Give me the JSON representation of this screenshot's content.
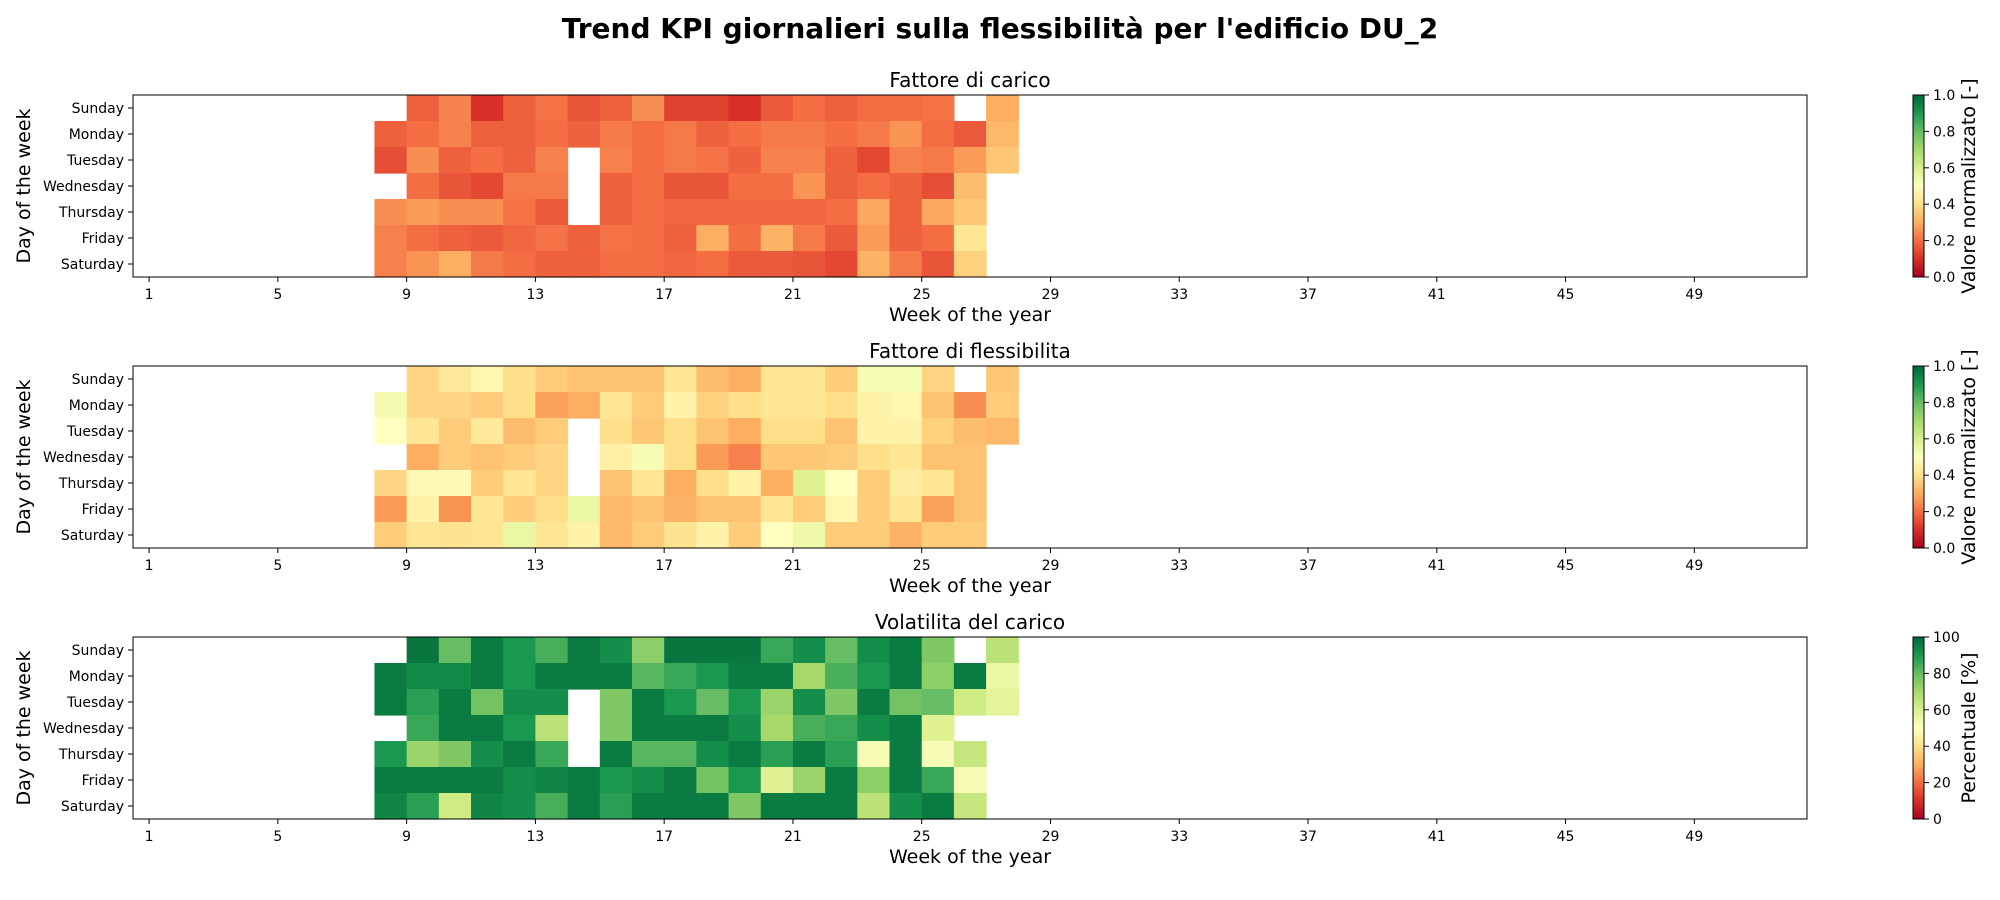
{
  "figure_title": "Trend KPI giornalieri sulla flessibilità per l'edificio DU_2",
  "chart_data": [
    {
      "type": "heatmap",
      "title": "Fattore di carico",
      "xlabel": "Week of the year",
      "ylabel": "Day of the week",
      "x_range": [
        1,
        52
      ],
      "x_ticks": [
        1,
        5,
        9,
        13,
        17,
        21,
        25,
        29,
        33,
        37,
        41,
        45,
        49
      ],
      "days": [
        "Sunday",
        "Monday",
        "Tuesday",
        "Wednesday",
        "Thursday",
        "Friday",
        "Saturday"
      ],
      "colormap": "RdYlGn",
      "colorbar": {
        "label": "Valore normalizzato [-]",
        "vmin": 0,
        "vmax": 1,
        "ticks": [
          "0.0",
          "0.2",
          "0.4",
          "0.6",
          "0.8",
          "1.0"
        ]
      },
      "weeks": [
        8,
        9,
        10,
        11,
        12,
        13,
        14,
        15,
        16,
        17,
        18,
        19,
        20,
        21,
        22,
        23,
        24,
        25,
        26,
        27
      ],
      "values": [
        [
          null,
          0.18,
          0.23,
          0.1,
          0.18,
          0.21,
          0.16,
          0.18,
          0.25,
          0.13,
          0.13,
          0.1,
          0.17,
          0.2,
          0.18,
          0.2,
          0.2,
          0.21,
          null,
          0.3
        ],
        [
          0.18,
          0.2,
          0.23,
          0.18,
          0.18,
          0.2,
          0.18,
          0.22,
          0.2,
          0.22,
          0.18,
          0.2,
          0.22,
          0.22,
          0.2,
          0.22,
          0.26,
          0.2,
          0.17,
          0.32
        ],
        [
          0.15,
          0.25,
          0.18,
          0.2,
          0.18,
          0.23,
          null,
          0.23,
          0.2,
          0.22,
          0.21,
          0.18,
          0.23,
          0.23,
          0.18,
          0.14,
          0.23,
          0.22,
          0.27,
          0.35
        ],
        [
          null,
          0.2,
          0.16,
          0.14,
          0.22,
          0.22,
          null,
          0.18,
          0.2,
          0.16,
          0.16,
          0.2,
          0.2,
          0.26,
          0.18,
          0.2,
          0.18,
          0.15,
          0.33,
          null
        ],
        [
          0.25,
          0.27,
          0.25,
          0.25,
          0.21,
          0.17,
          null,
          0.18,
          0.2,
          0.19,
          0.19,
          0.19,
          0.19,
          0.19,
          0.2,
          0.29,
          0.18,
          0.29,
          0.35,
          null
        ],
        [
          0.23,
          0.2,
          0.18,
          0.17,
          0.19,
          0.21,
          0.18,
          0.21,
          0.2,
          0.18,
          0.3,
          0.2,
          0.31,
          0.22,
          0.17,
          0.27,
          0.18,
          0.2,
          0.42,
          null
        ],
        [
          0.23,
          0.26,
          0.3,
          0.22,
          0.2,
          0.18,
          0.18,
          0.2,
          0.2,
          0.19,
          0.2,
          0.17,
          0.17,
          0.16,
          0.14,
          0.31,
          0.22,
          0.16,
          0.37,
          null
        ]
      ]
    },
    {
      "type": "heatmap",
      "title": "Fattore di flessibilita",
      "xlabel": "Week of the year",
      "ylabel": "Day of the week",
      "x_range": [
        1,
        52
      ],
      "x_ticks": [
        1,
        5,
        9,
        13,
        17,
        21,
        25,
        29,
        33,
        37,
        41,
        45,
        49
      ],
      "days": [
        "Sunday",
        "Monday",
        "Tuesday",
        "Wednesday",
        "Thursday",
        "Friday",
        "Saturday"
      ],
      "colormap": "RdYlGn",
      "colorbar": {
        "label": "Valore normalizzato [-]",
        "vmin": 0,
        "vmax": 1,
        "ticks": [
          "0.0",
          "0.2",
          "0.4",
          "0.6",
          "0.8",
          "1.0"
        ]
      },
      "weeks": [
        8,
        9,
        10,
        11,
        12,
        13,
        14,
        15,
        16,
        17,
        18,
        19,
        20,
        21,
        22,
        23,
        24,
        25,
        26,
        27
      ],
      "values": [
        [
          null,
          0.38,
          0.43,
          0.47,
          0.4,
          0.36,
          0.34,
          0.34,
          0.34,
          0.42,
          0.33,
          0.3,
          0.42,
          0.42,
          0.36,
          0.52,
          0.52,
          0.38,
          null,
          0.35
        ],
        [
          0.53,
          0.38,
          0.38,
          0.36,
          0.4,
          0.28,
          0.3,
          0.42,
          0.36,
          0.46,
          0.37,
          0.4,
          0.42,
          0.42,
          0.4,
          0.46,
          0.47,
          0.34,
          0.25,
          0.36
        ],
        [
          0.5,
          0.42,
          0.36,
          0.43,
          0.33,
          0.36,
          null,
          0.4,
          0.35,
          0.4,
          0.34,
          0.3,
          0.4,
          0.4,
          0.34,
          0.46,
          0.46,
          0.37,
          0.33,
          0.32
        ],
        [
          null,
          0.3,
          0.36,
          0.34,
          0.36,
          0.38,
          null,
          0.45,
          0.52,
          0.4,
          0.27,
          0.23,
          0.35,
          0.35,
          0.36,
          0.4,
          0.42,
          0.34,
          0.34,
          null
        ],
        [
          0.38,
          0.48,
          0.48,
          0.36,
          0.42,
          0.38,
          null,
          0.34,
          0.42,
          0.3,
          0.4,
          0.46,
          0.3,
          0.58,
          0.5,
          0.36,
          0.44,
          0.42,
          0.34,
          null
        ],
        [
          0.27,
          0.46,
          0.26,
          0.42,
          0.36,
          0.4,
          0.55,
          0.32,
          0.34,
          0.31,
          0.34,
          0.34,
          0.42,
          0.36,
          0.47,
          0.36,
          0.42,
          0.28,
          0.34,
          null
        ],
        [
          0.36,
          0.42,
          0.41,
          0.42,
          0.55,
          0.42,
          0.46,
          0.32,
          0.36,
          0.41,
          0.46,
          0.36,
          0.5,
          0.54,
          0.36,
          0.36,
          0.31,
          0.36,
          0.36,
          null
        ]
      ]
    },
    {
      "type": "heatmap",
      "title": "Volatilita del carico",
      "xlabel": "Week of the year",
      "ylabel": "Day of the week",
      "x_range": [
        1,
        52
      ],
      "x_ticks": [
        1,
        5,
        9,
        13,
        17,
        21,
        25,
        29,
        33,
        37,
        41,
        45,
        49
      ],
      "days": [
        "Sunday",
        "Monday",
        "Tuesday",
        "Wednesday",
        "Thursday",
        "Friday",
        "Saturday"
      ],
      "colormap": "RdYlGn",
      "colorbar": {
        "label": "Percentuale [%]",
        "vmin": 0,
        "vmax": 100,
        "ticks": [
          "0",
          "20",
          "40",
          "60",
          "80",
          "100"
        ]
      },
      "weeks": [
        8,
        9,
        10,
        11,
        12,
        13,
        14,
        15,
        16,
        17,
        18,
        19,
        20,
        21,
        22,
        23,
        24,
        25,
        26,
        27
      ],
      "values": [
        [
          null,
          97,
          80,
          96,
          90,
          84,
          96,
          92,
          74,
          97,
          97,
          97,
          86,
          92,
          80,
          92,
          96,
          76,
          null,
          66
        ],
        [
          96,
          93,
          93,
          96,
          90,
          96,
          96,
          96,
          82,
          86,
          90,
          96,
          96,
          70,
          84,
          90,
          96,
          74,
          96,
          55
        ],
        [
          96,
          88,
          96,
          78,
          92,
          92,
          null,
          76,
          96,
          90,
          80,
          90,
          72,
          92,
          76,
          96,
          78,
          80,
          62,
          57
        ],
        [
          null,
          86,
          96,
          96,
          90,
          66,
          null,
          76,
          96,
          96,
          96,
          92,
          70,
          84,
          86,
          92,
          96,
          58,
          null,
          null
        ],
        [
          90,
          72,
          76,
          92,
          96,
          86,
          null,
          96,
          82,
          82,
          92,
          96,
          88,
          96,
          88,
          52,
          96,
          52,
          64,
          null
        ],
        [
          96,
          96,
          96,
          96,
          92,
          94,
          96,
          90,
          92,
          96,
          78,
          90,
          58,
          72,
          96,
          74,
          96,
          86,
          52,
          null
        ],
        [
          94,
          88,
          62,
          94,
          92,
          84,
          96,
          88,
          96,
          96,
          96,
          76,
          96,
          96,
          96,
          66,
          92,
          96,
          64,
          null
        ]
      ]
    }
  ]
}
